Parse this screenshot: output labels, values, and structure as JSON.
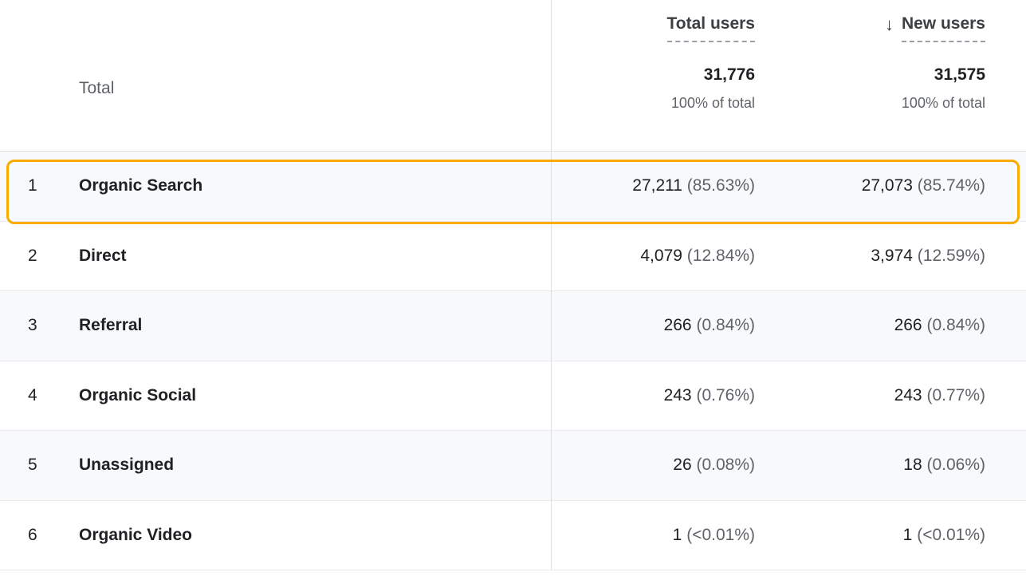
{
  "header": {
    "columns": [
      {
        "label": "Total users"
      },
      {
        "label": "New users",
        "sort_icon": "↓"
      }
    ],
    "total_label": "Total",
    "totals": [
      {
        "value": "31,776",
        "share": "100% of total"
      },
      {
        "value": "31,575",
        "share": "100% of total"
      }
    ]
  },
  "rows": [
    {
      "num": "1",
      "channel": "Organic Search",
      "total_users": "27,211",
      "total_users_pct": "(85.63%)",
      "new_users": "27,073",
      "new_users_pct": "(85.74%)",
      "highlighted": true
    },
    {
      "num": "2",
      "channel": "Direct",
      "total_users": "4,079",
      "total_users_pct": "(12.84%)",
      "new_users": "3,974",
      "new_users_pct": "(12.59%)",
      "highlighted": false
    },
    {
      "num": "3",
      "channel": "Referral",
      "total_users": "266",
      "total_users_pct": "(0.84%)",
      "new_users": "266",
      "new_users_pct": "(0.84%)",
      "highlighted": false
    },
    {
      "num": "4",
      "channel": "Organic Social",
      "total_users": "243",
      "total_users_pct": "(0.76%)",
      "new_users": "243",
      "new_users_pct": "(0.77%)",
      "highlighted": false
    },
    {
      "num": "5",
      "channel": "Unassigned",
      "total_users": "26",
      "total_users_pct": "(0.08%)",
      "new_users": "18",
      "new_users_pct": "(0.06%)",
      "highlighted": false
    },
    {
      "num": "6",
      "channel": "Organic Video",
      "total_users": "1",
      "total_users_pct": "(<0.01%)",
      "new_users": "1",
      "new_users_pct": "(<0.01%)",
      "highlighted": false
    }
  ],
  "colors": {
    "highlight": "#F9AB00",
    "row_alt_bg": "#F8F9FA",
    "divider": "#E0E0E0",
    "text_primary": "#202124",
    "text_secondary": "#5F6368"
  }
}
